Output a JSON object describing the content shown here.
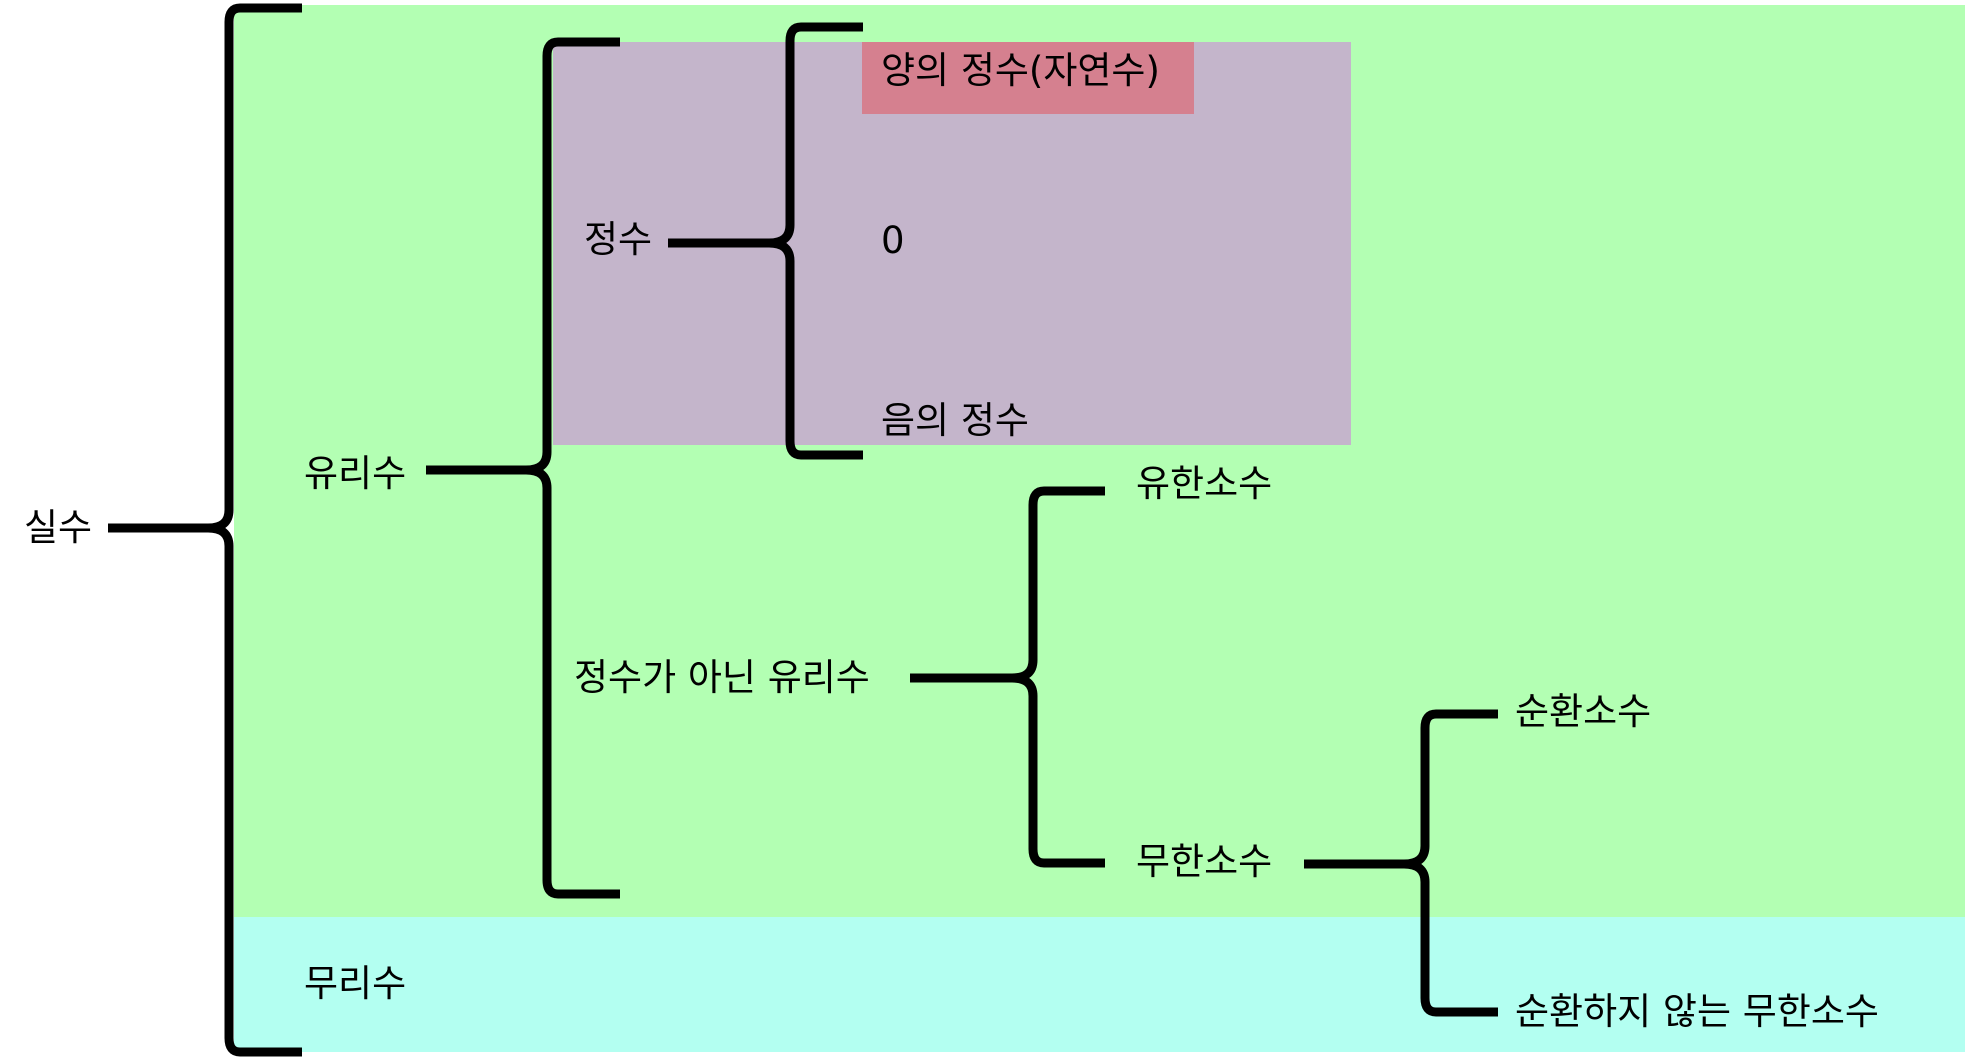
{
  "colors": {
    "rational_bg": "#b3ffb3",
    "irrational_bg": "#b3fff1",
    "integer_bg": "#c4b5cb",
    "natural_bg": "#d5808f"
  },
  "labels": {
    "real": "실수",
    "rational": "유리수",
    "irrational": "무리수",
    "integer": "정수",
    "non_integer_rational": "정수가 아닌 유리수",
    "positive_integer": "양의 정수(자연수)",
    "zero": "0",
    "negative_integer": "음의 정수",
    "finite_decimal": "유한소수",
    "infinite_decimal": "무한소수",
    "repeating_decimal": "순환소수",
    "non_repeating_decimal": "순환하지 않는 무한소수"
  }
}
